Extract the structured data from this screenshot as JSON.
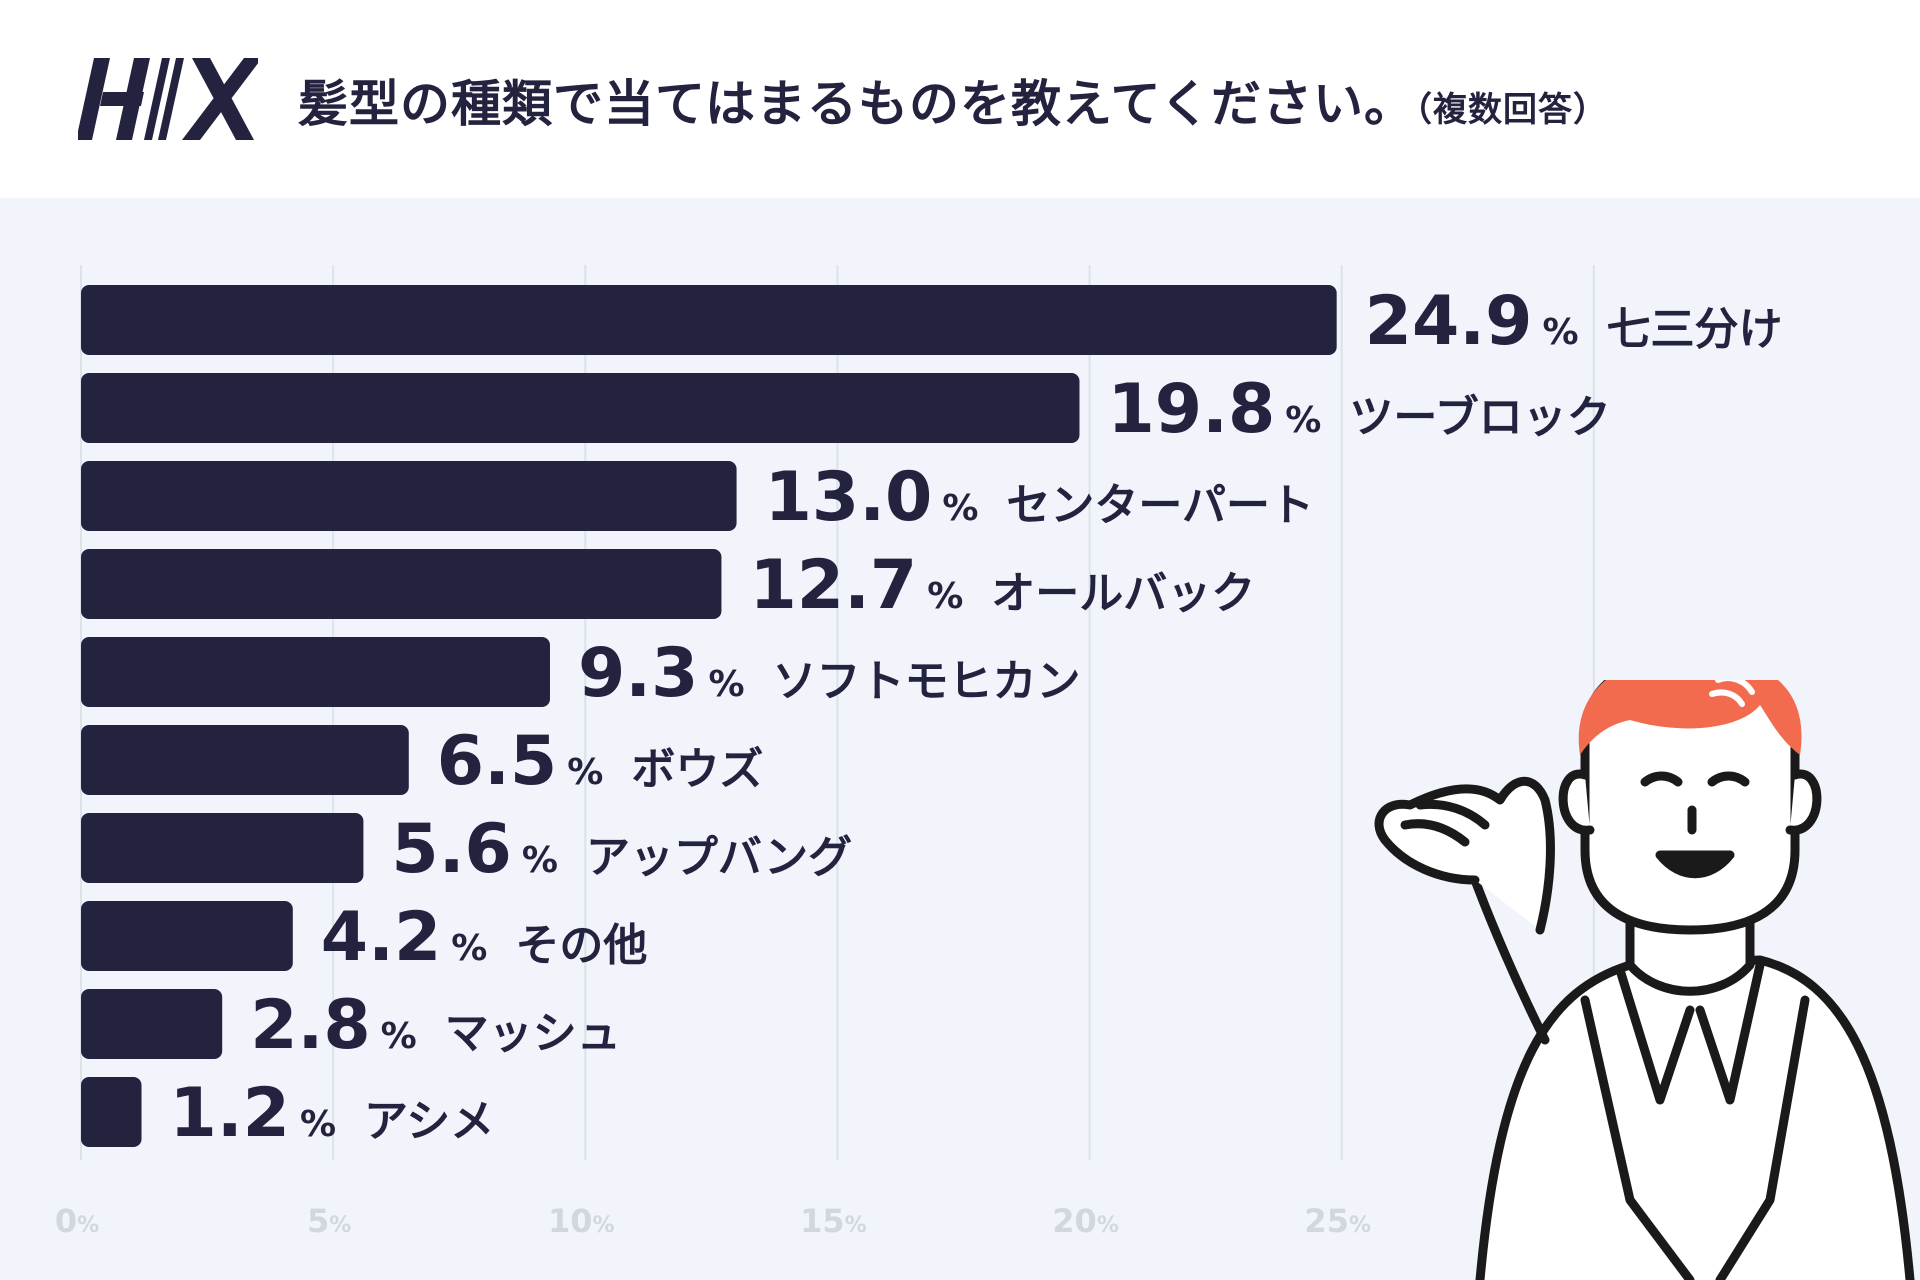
{
  "header": {
    "title": "髪型の種類で当てはまるものを教えてください。",
    "title_note": "（複数回答）",
    "logo": "HIX"
  },
  "illustration": "man-gesturing-icon",
  "colors": {
    "bar": "#23233f",
    "background": "#f1f4fa",
    "hair": "#f26b4f",
    "tick": "#d2d7df"
  },
  "chart_data": {
    "type": "bar",
    "orientation": "horizontal",
    "title": "髪型の種類で当てはまるものを教えてください。（複数回答）",
    "categories": [
      "七三分け",
      "ツーブロック",
      "センターパート",
      "オールバック",
      "ソフトモヒカン",
      "ボウズ",
      "アップバング",
      "その他",
      "マッシュ",
      "アシメ"
    ],
    "values": [
      24.9,
      19.8,
      13.0,
      12.7,
      9.3,
      6.5,
      5.6,
      4.2,
      2.8,
      1.2
    ],
    "value_labels": [
      "24.9",
      "19.8",
      "13.0",
      "12.7",
      "9.3",
      "6.5",
      "5.6",
      "4.2",
      "2.8",
      "1.2"
    ],
    "unit": "%",
    "xlim": [
      0,
      35
    ],
    "ticks": [
      "0",
      "5",
      "10",
      "15",
      "20",
      "25"
    ],
    "grid": true
  }
}
